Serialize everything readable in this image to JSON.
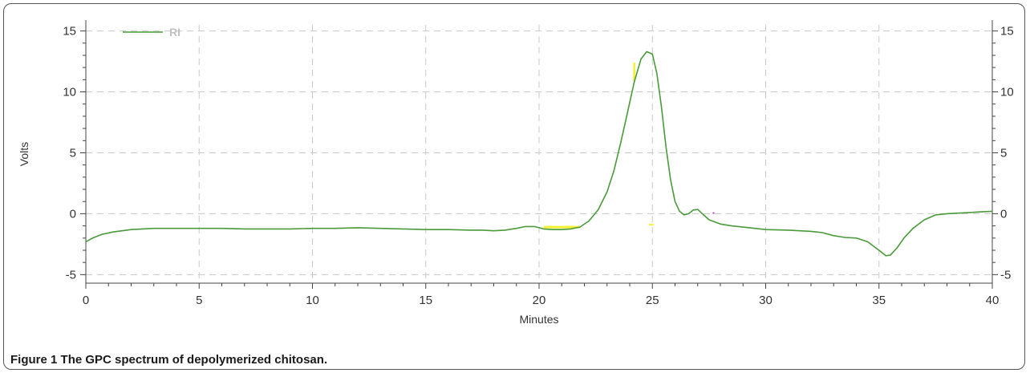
{
  "caption": {
    "label": "Figure 1",
    "text": "The GPC spectrum of depolymerized chitosan."
  },
  "chart_data": {
    "type": "line",
    "title": "",
    "xlabel": "Minutes",
    "ylabel": "Volts",
    "xlim": [
      0,
      40
    ],
    "ylim": [
      -5.7,
      15.5
    ],
    "x_ticks": [
      0,
      5,
      10,
      15,
      20,
      25,
      30,
      35,
      40
    ],
    "y_ticks": [
      -5,
      0,
      5,
      10,
      15
    ],
    "grid": true,
    "right_axis_mirrored": true,
    "legend": {
      "position": "top-left",
      "entries": [
        "RI"
      ]
    },
    "colors": {
      "RI": "#4a9a3a",
      "grid": "#c8c8c8",
      "marker_yellow": "#f5f030",
      "marker_magenta": "#d040d0"
    },
    "series": [
      {
        "name": "RI",
        "x": [
          0,
          0.3,
          0.7,
          1.2,
          2,
          3,
          4,
          5,
          6,
          7,
          8,
          9,
          10,
          11,
          12,
          13,
          14,
          15,
          16,
          17,
          17.5,
          18,
          18.5,
          19,
          19.4,
          19.8,
          20.2,
          20.6,
          21,
          21.4,
          21.8,
          22.2,
          22.6,
          23,
          23.3,
          23.6,
          23.9,
          24.2,
          24.5,
          24.75,
          25,
          25.2,
          25.4,
          25.6,
          25.8,
          26,
          26.2,
          26.4,
          26.6,
          26.8,
          27,
          27.2,
          27.5,
          28,
          28.5,
          29,
          30,
          31,
          32,
          32.5,
          33,
          33.5,
          34,
          34.5,
          35,
          35.3,
          35.5,
          35.8,
          36.1,
          36.5,
          37,
          37.5,
          38,
          38.5,
          39,
          39.5,
          40
        ],
        "values": [
          -2.3,
          -2.0,
          -1.7,
          -1.5,
          -1.3,
          -1.2,
          -1.2,
          -1.2,
          -1.2,
          -1.25,
          -1.25,
          -1.25,
          -1.2,
          -1.2,
          -1.15,
          -1.2,
          -1.25,
          -1.3,
          -1.3,
          -1.35,
          -1.35,
          -1.4,
          -1.35,
          -1.2,
          -1.05,
          -1.05,
          -1.25,
          -1.3,
          -1.3,
          -1.25,
          -1.1,
          -0.6,
          0.3,
          1.8,
          3.5,
          5.8,
          8.3,
          10.8,
          12.7,
          13.3,
          13.1,
          11.5,
          8.8,
          5.5,
          2.8,
          1.0,
          0.2,
          -0.1,
          0.0,
          0.3,
          0.35,
          0.0,
          -0.5,
          -0.85,
          -1.0,
          -1.1,
          -1.3,
          -1.35,
          -1.45,
          -1.55,
          -1.8,
          -1.95,
          -2.0,
          -2.3,
          -3.0,
          -3.45,
          -3.4,
          -2.8,
          -2.0,
          -1.2,
          -0.5,
          -0.1,
          0.0,
          0.05,
          0.1,
          0.15,
          0.2
        ]
      }
    ]
  }
}
